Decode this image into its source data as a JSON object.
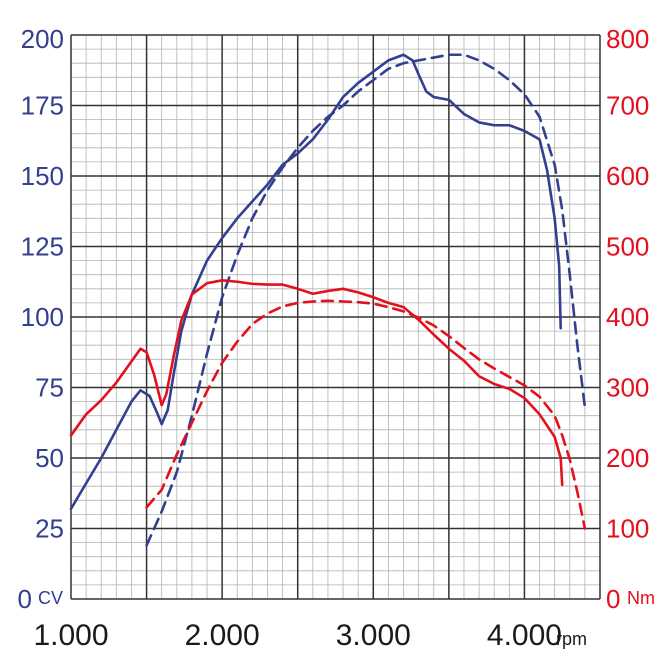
{
  "chart_data": {
    "type": "line",
    "x_unit": "rpm",
    "y_left_unit": "CV",
    "y_right_unit": "Nm",
    "x_ticks": [
      {
        "value": 1000,
        "label": "1.000"
      },
      {
        "value": 2000,
        "label": "2.000"
      },
      {
        "value": 3000,
        "label": "3.000"
      },
      {
        "value": 4000,
        "label": "4.000"
      }
    ],
    "y_left_ticks": [
      {
        "value": 0,
        "label": "0"
      },
      {
        "value": 25,
        "label": "25"
      },
      {
        "value": 50,
        "label": "50"
      },
      {
        "value": 75,
        "label": "75"
      },
      {
        "value": 100,
        "label": "100"
      },
      {
        "value": 125,
        "label": "125"
      },
      {
        "value": 150,
        "label": "150"
      },
      {
        "value": 175,
        "label": "175"
      },
      {
        "value": 200,
        "label": "200"
      }
    ],
    "y_right_ticks": [
      {
        "value": 0,
        "label": "0"
      },
      {
        "value": 100,
        "label": "100"
      },
      {
        "value": 200,
        "label": "200"
      },
      {
        "value": 300,
        "label": "300"
      },
      {
        "value": 400,
        "label": "400"
      },
      {
        "value": 500,
        "label": "500"
      },
      {
        "value": 600,
        "label": "600"
      },
      {
        "value": 700,
        "label": "700"
      },
      {
        "value": 800,
        "label": "800"
      }
    ],
    "xlim": [
      1000,
      4500
    ],
    "ylim_left": [
      0,
      200
    ],
    "ylim_right": [
      0,
      800
    ],
    "grid": true,
    "colors": {
      "power": "#333f8f",
      "torque": "#e3101e",
      "grid_major": "#333333",
      "grid_minor": "#b3b3b3"
    },
    "series": [
      {
        "axis": "left",
        "color": "#333f8f",
        "dashed": false,
        "points": [
          [
            1000,
            32
          ],
          [
            1100,
            41
          ],
          [
            1200,
            50
          ],
          [
            1300,
            60
          ],
          [
            1400,
            70
          ],
          [
            1460,
            74
          ],
          [
            1520,
            72
          ],
          [
            1570,
            66
          ],
          [
            1600,
            62
          ],
          [
            1640,
            67
          ],
          [
            1680,
            80
          ],
          [
            1730,
            95
          ],
          [
            1800,
            108
          ],
          [
            1900,
            120
          ],
          [
            2000,
            128
          ],
          [
            2100,
            135
          ],
          [
            2200,
            141
          ],
          [
            2300,
            147
          ],
          [
            2400,
            154
          ],
          [
            2500,
            158
          ],
          [
            2600,
            163
          ],
          [
            2700,
            170
          ],
          [
            2800,
            178
          ],
          [
            2900,
            183
          ],
          [
            3000,
            187
          ],
          [
            3100,
            191
          ],
          [
            3200,
            193
          ],
          [
            3260,
            191
          ],
          [
            3300,
            186
          ],
          [
            3350,
            180
          ],
          [
            3400,
            178
          ],
          [
            3500,
            177
          ],
          [
            3600,
            172
          ],
          [
            3700,
            169
          ],
          [
            3800,
            168
          ],
          [
            3900,
            168
          ],
          [
            4000,
            166
          ],
          [
            4100,
            163
          ],
          [
            4150,
            152
          ],
          [
            4200,
            135
          ],
          [
            4230,
            118
          ],
          [
            4240,
            96
          ]
        ]
      },
      {
        "axis": "left",
        "color": "#333f8f",
        "dashed": true,
        "points": [
          [
            1500,
            19
          ],
          [
            1600,
            31
          ],
          [
            1700,
            45
          ],
          [
            1800,
            65
          ],
          [
            1900,
            87
          ],
          [
            2000,
            107
          ],
          [
            2100,
            122
          ],
          [
            2200,
            135
          ],
          [
            2300,
            145
          ],
          [
            2400,
            153
          ],
          [
            2500,
            160
          ],
          [
            2600,
            166
          ],
          [
            2700,
            171
          ],
          [
            2800,
            175
          ],
          [
            2900,
            180
          ],
          [
            3000,
            184
          ],
          [
            3100,
            188
          ],
          [
            3200,
            190
          ],
          [
            3300,
            191
          ],
          [
            3400,
            192
          ],
          [
            3500,
            193
          ],
          [
            3600,
            193
          ],
          [
            3700,
            191
          ],
          [
            3800,
            188
          ],
          [
            3900,
            184
          ],
          [
            4000,
            179
          ],
          [
            4100,
            171
          ],
          [
            4200,
            154
          ],
          [
            4250,
            138
          ],
          [
            4300,
            115
          ],
          [
            4350,
            90
          ],
          [
            4400,
            68
          ]
        ]
      },
      {
        "axis": "right",
        "color": "#e3101e",
        "dashed": false,
        "points": [
          [
            1000,
            232
          ],
          [
            1100,
            262
          ],
          [
            1200,
            282
          ],
          [
            1300,
            307
          ],
          [
            1400,
            337
          ],
          [
            1460,
            355
          ],
          [
            1500,
            350
          ],
          [
            1550,
            318
          ],
          [
            1600,
            275
          ],
          [
            1630,
            290
          ],
          [
            1680,
            345
          ],
          [
            1730,
            395
          ],
          [
            1800,
            432
          ],
          [
            1900,
            448
          ],
          [
            2000,
            452
          ],
          [
            2100,
            450
          ],
          [
            2200,
            447
          ],
          [
            2300,
            446
          ],
          [
            2400,
            446
          ],
          [
            2500,
            440
          ],
          [
            2600,
            433
          ],
          [
            2700,
            437
          ],
          [
            2800,
            440
          ],
          [
            2900,
            435
          ],
          [
            3000,
            428
          ],
          [
            3100,
            420
          ],
          [
            3200,
            414
          ],
          [
            3300,
            396
          ],
          [
            3400,
            375
          ],
          [
            3500,
            355
          ],
          [
            3600,
            338
          ],
          [
            3700,
            316
          ],
          [
            3800,
            305
          ],
          [
            3900,
            298
          ],
          [
            4000,
            285
          ],
          [
            4100,
            262
          ],
          [
            4200,
            230
          ],
          [
            4240,
            200
          ],
          [
            4250,
            162
          ]
        ]
      },
      {
        "axis": "right",
        "color": "#e3101e",
        "dashed": true,
        "points": [
          [
            1500,
            130
          ],
          [
            1600,
            155
          ],
          [
            1700,
            205
          ],
          [
            1800,
            250
          ],
          [
            1900,
            295
          ],
          [
            2000,
            335
          ],
          [
            2100,
            365
          ],
          [
            2200,
            390
          ],
          [
            2300,
            405
          ],
          [
            2400,
            415
          ],
          [
            2500,
            420
          ],
          [
            2600,
            422
          ],
          [
            2700,
            423
          ],
          [
            2800,
            422
          ],
          [
            2900,
            421
          ],
          [
            3000,
            419
          ],
          [
            3100,
            414
          ],
          [
            3200,
            408
          ],
          [
            3300,
            399
          ],
          [
            3400,
            388
          ],
          [
            3500,
            373
          ],
          [
            3600,
            356
          ],
          [
            3700,
            340
          ],
          [
            3800,
            327
          ],
          [
            3900,
            315
          ],
          [
            4000,
            303
          ],
          [
            4100,
            287
          ],
          [
            4200,
            260
          ],
          [
            4250,
            232
          ],
          [
            4300,
            198
          ],
          [
            4350,
            152
          ],
          [
            4400,
            100
          ]
        ]
      }
    ]
  }
}
